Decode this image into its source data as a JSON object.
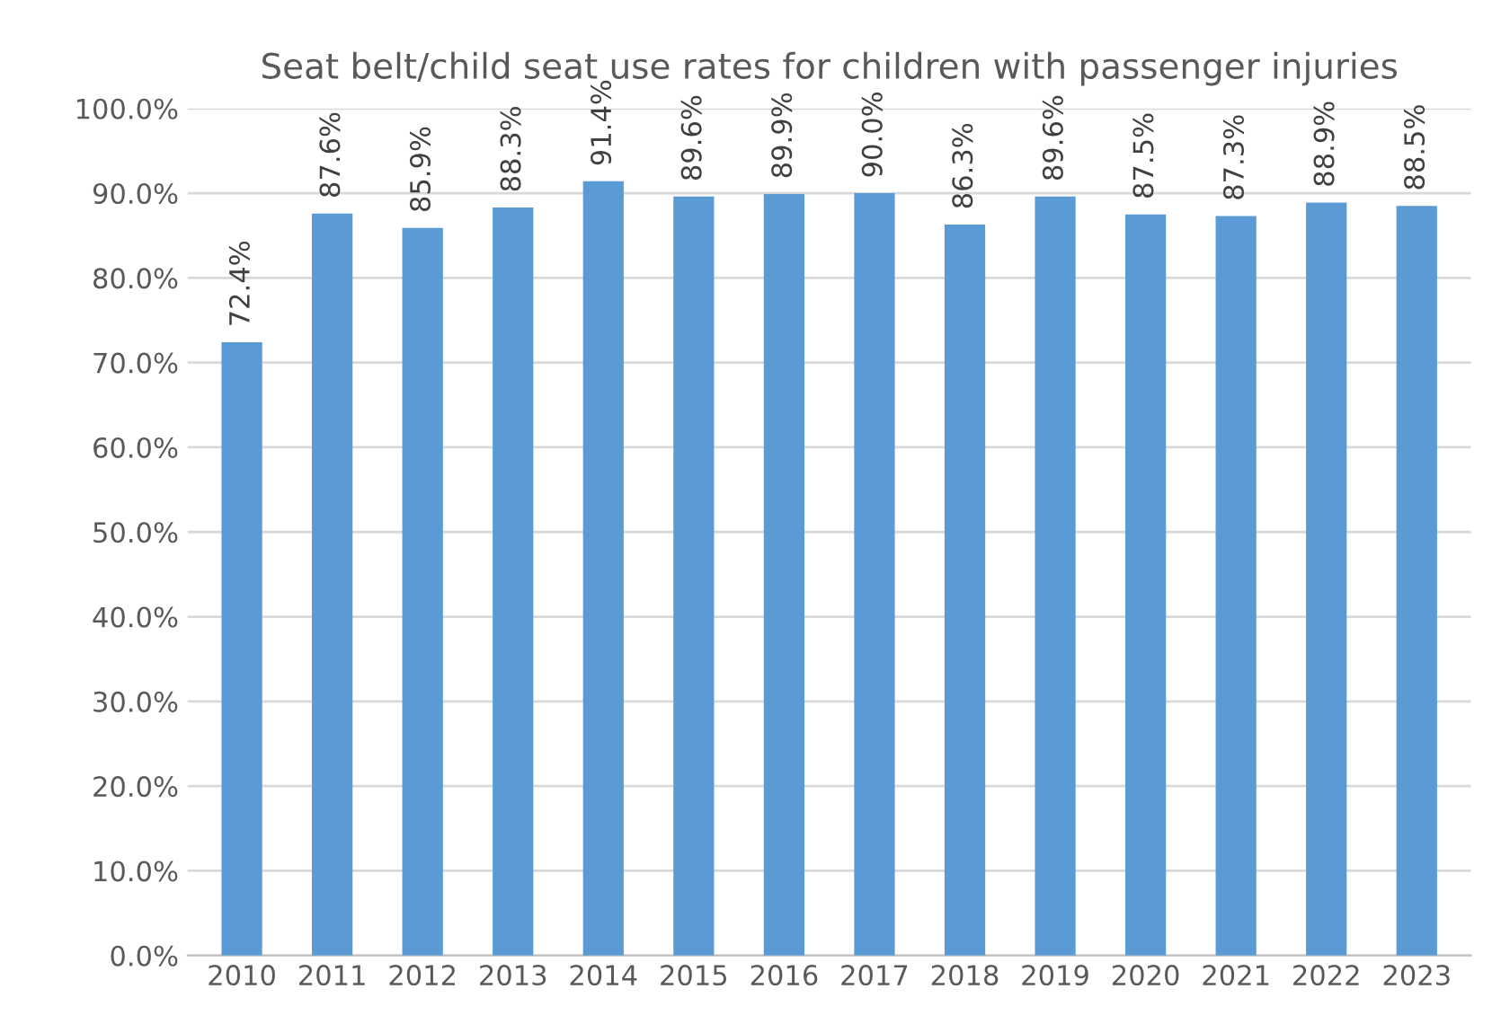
{
  "chart_data": {
    "type": "bar",
    "title": "Seat belt/child seat use rates for children with passenger injuries",
    "categories": [
      "2010",
      "2011",
      "2012",
      "2013",
      "2014",
      "2015",
      "2016",
      "2017",
      "2018",
      "2019",
      "2020",
      "2021",
      "2022",
      "2023"
    ],
    "values": [
      72.4,
      87.6,
      85.9,
      88.3,
      91.4,
      89.6,
      89.9,
      90.0,
      86.3,
      89.6,
      87.5,
      87.3,
      88.9,
      88.5
    ],
    "value_labels": [
      "72.4%",
      "87.6%",
      "85.9%",
      "88.3%",
      "91.4%",
      "89.6%",
      "89.9%",
      "90.0%",
      "86.3%",
      "89.6%",
      "87.5%",
      "87.3%",
      "88.9%",
      "88.5%"
    ],
    "color": "#5b9bd5",
    "ylim": [
      0,
      100
    ],
    "yticks": [
      {
        "value": 0,
        "label": "0.0%"
      },
      {
        "value": 10,
        "label": "10.0%"
      },
      {
        "value": 20,
        "label": "20.0%"
      },
      {
        "value": 30,
        "label": "30.0%"
      },
      {
        "value": 40,
        "label": "40.0%"
      },
      {
        "value": 50,
        "label": "50.0%"
      },
      {
        "value": 60,
        "label": "60.0%"
      },
      {
        "value": 70,
        "label": "70.0%"
      },
      {
        "value": 80,
        "label": "80.0%"
      },
      {
        "value": 90,
        "label": "90.0%"
      },
      {
        "value": 100,
        "label": "100.0%"
      }
    ],
    "grid": "y",
    "legend": false
  }
}
